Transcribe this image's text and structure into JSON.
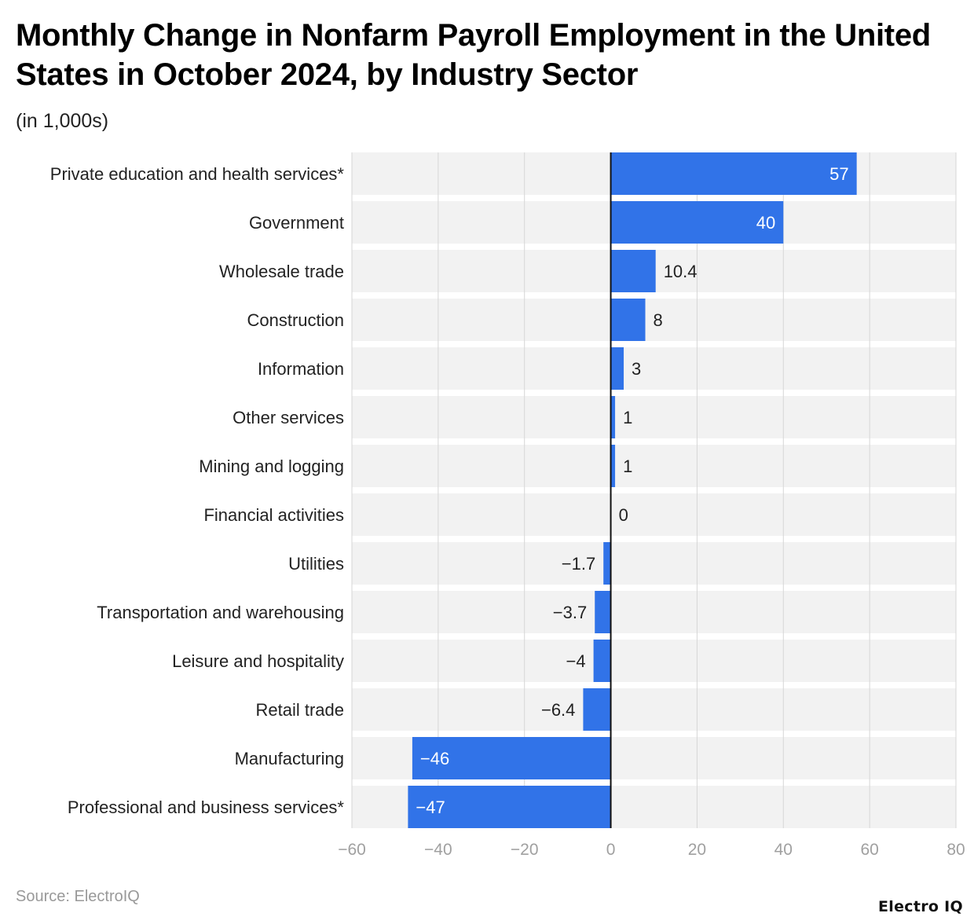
{
  "title": "Monthly Change in Nonfarm Payroll Employment in the United States in October 2024, by Industry Sector",
  "subtitle": "(in 1,000s)",
  "source": "Source: ElectroIQ",
  "logo": "Electro IQ",
  "chart_data": {
    "type": "bar",
    "orientation": "horizontal",
    "title": "Monthly Change in Nonfarm Payroll Employment in the United States in October 2024, by Industry Sector",
    "subtitle": "(in 1,000s)",
    "categories": [
      "Private education and health services*",
      "Government",
      "Wholesale trade",
      "Construction",
      "Information",
      "Other services",
      "Mining and logging",
      "Financial activities",
      "Utilities",
      "Transportation and warehousing",
      "Leisure and hospitality",
      "Retail trade",
      "Manufacturing",
      "Professional and business services*"
    ],
    "values": [
      57,
      40,
      10.4,
      8,
      3,
      1,
      1,
      0,
      -1.7,
      -3.7,
      -4,
      -6.4,
      -46,
      -47
    ],
    "xlim": [
      -60,
      80
    ],
    "xticks": [
      -60,
      -40,
      -20,
      0,
      20,
      40,
      60,
      80
    ],
    "grid": true,
    "bar_color": "#3173e8",
    "band_color": "#f2f2f2"
  }
}
